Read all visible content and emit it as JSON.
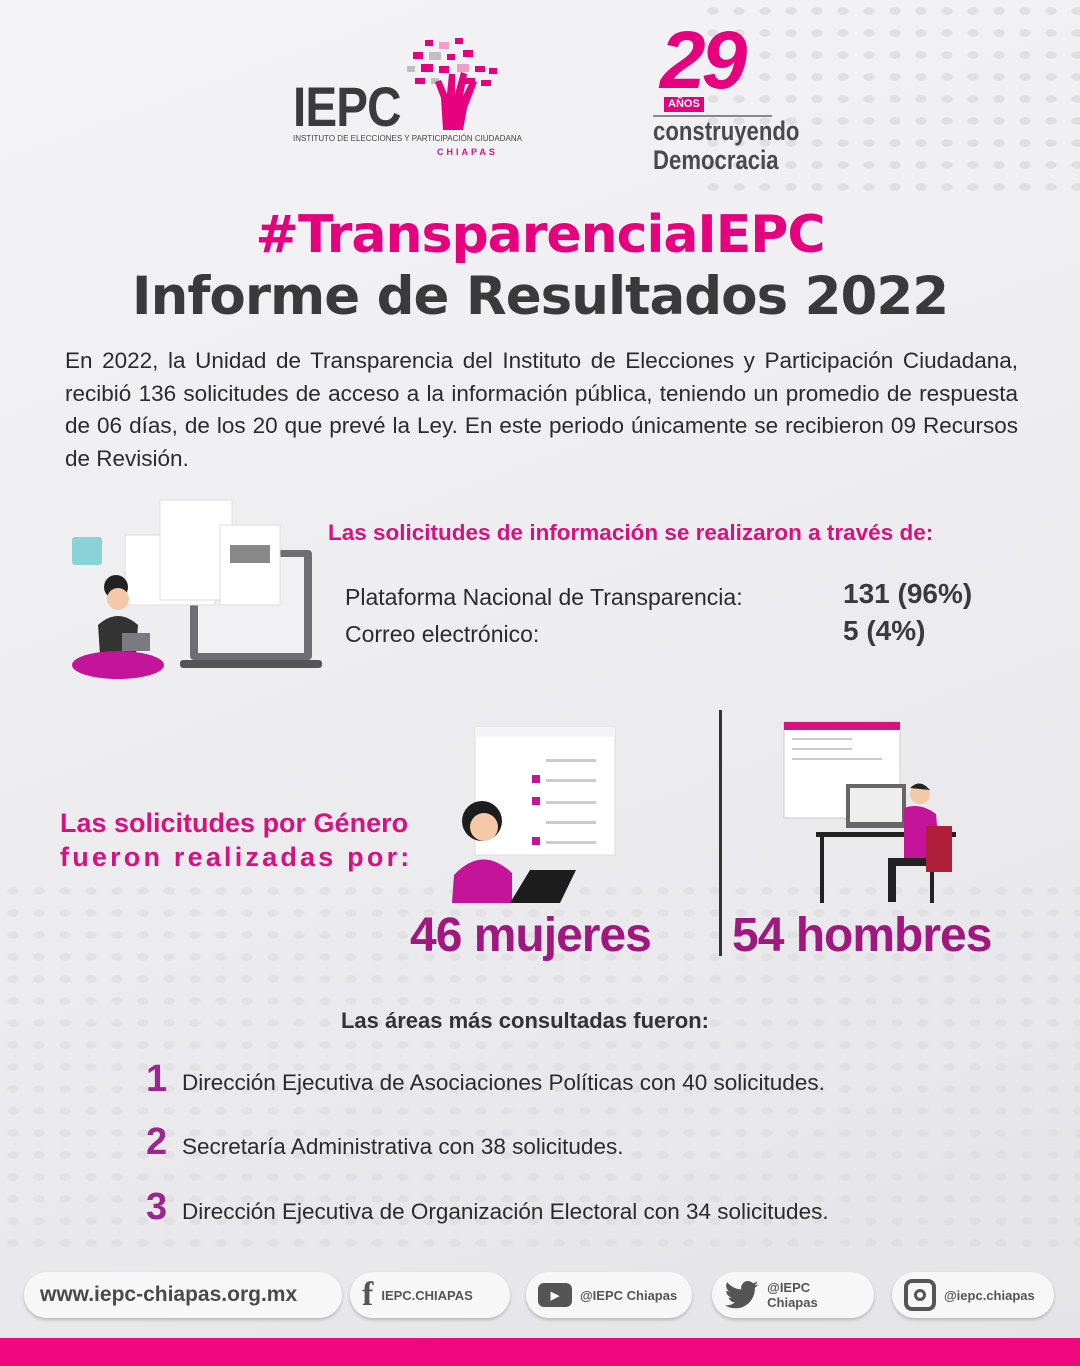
{
  "header": {
    "logo_iepc": "IEPC",
    "logo_iepc_subtitle": "INSTITUTO DE ELECCIONES Y PARTICIPACIÓN CIUDADANA",
    "logo_iepc_state": "CHIAPAS",
    "anniversary_number": "29",
    "anniversary_label": "AÑOS",
    "anniversary_line1": "construyendo",
    "anniversary_line2": "Democracia"
  },
  "title": {
    "hashtag": "#TransparenciaIEPC",
    "main": "Informe de Resultados 2022"
  },
  "intro": "En 2022, la Unidad de Transparencia del Instituto de Elecciones y Participación Ciudadana, recibió 136 solicitudes de acceso a la información pública, teniendo un promedio de respuesta de 06 días, de los 20 que prevé la Ley. En este periodo únicamente se recibieron 09 Recursos de Revisión.",
  "channels": {
    "heading": "Las solicitudes de información se realizaron a través de:",
    "rows": [
      {
        "label": "Plataforma Nacional de Transparencia:",
        "value": "131 (96%)"
      },
      {
        "label": "Correo electrónico:",
        "value": "5 (4%)"
      }
    ]
  },
  "gender": {
    "heading_line1": "Las solicitudes por Género",
    "heading_line2": "fueron realizadas por:",
    "women": "46 mujeres",
    "men": "54 hombres"
  },
  "areas": {
    "heading": "Las áreas más consultadas fueron:",
    "items": [
      {
        "rank": "1",
        "text": "Dirección Ejecutiva de Asociaciones Políticas con 40 solicitudes."
      },
      {
        "rank": "2",
        "text": "Secretaría Administrativa con 38 solicitudes."
      },
      {
        "rank": "3",
        "text": "Dirección Ejecutiva de Organización Electoral con 34 solicitudes."
      }
    ]
  },
  "footer": {
    "website": "www.iepc-chiapas.org.mx",
    "facebook": "IEPC.CHIAPAS",
    "youtube": "@IEPC Chiapas",
    "twitter": "@IEPC Chiapas",
    "instagram": "@iepc.chiapas"
  },
  "colors": {
    "accent": "#e6007e",
    "purple": "#a0187f",
    "text": "#3a3a3a",
    "bar": "#f0087f"
  }
}
